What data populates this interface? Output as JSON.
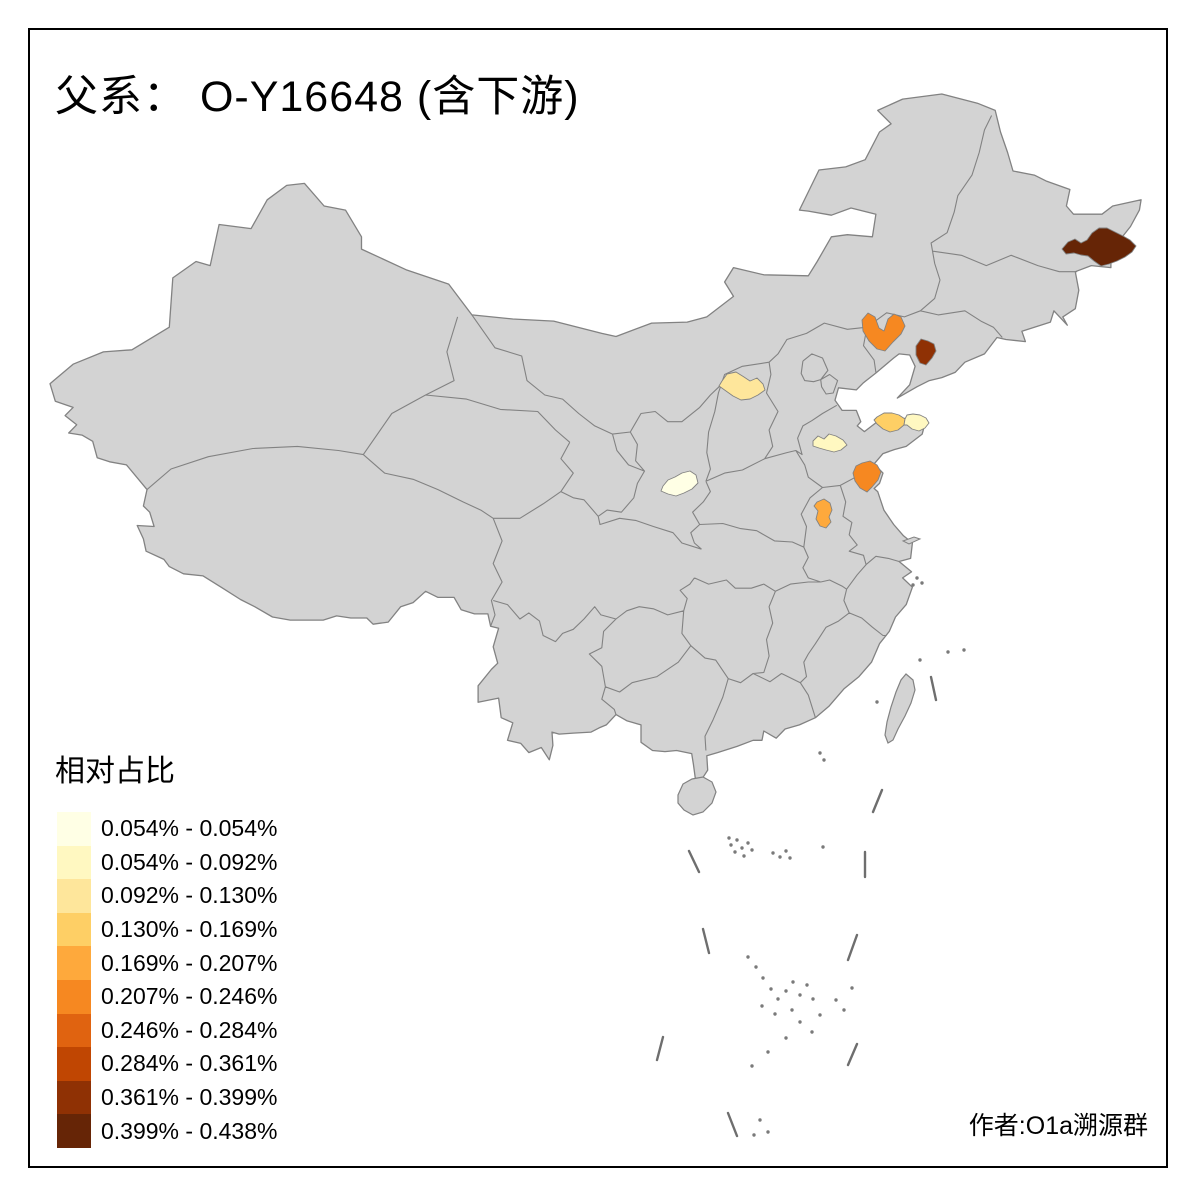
{
  "title": "父系： O-Y16648 (含下游)",
  "attribution": "作者:O1a溯源群",
  "legend": {
    "title": "相对占比",
    "classes": [
      {
        "label": "0.054% - 0.054%",
        "color": "#FFFFE5"
      },
      {
        "label": "0.054% - 0.092%",
        "color": "#FFF8C1"
      },
      {
        "label": "0.092% - 0.130%",
        "color": "#FEE69B"
      },
      {
        "label": "0.130% - 0.169%",
        "color": "#FECF65"
      },
      {
        "label": "0.169% - 0.207%",
        "color": "#FEA93C"
      },
      {
        "label": "0.207% - 0.246%",
        "color": "#F68821"
      },
      {
        "label": "0.246% - 0.284%",
        "color": "#E06310"
      },
      {
        "label": "0.284% - 0.361%",
        "color": "#C04602"
      },
      {
        "label": "0.361% - 0.399%",
        "color": "#8F3104"
      },
      {
        "label": "0.399% - 0.438%",
        "color": "#662506"
      }
    ]
  },
  "map": {
    "base_fill": "#D3D3D3",
    "border_color": "#828282",
    "island_dot_color": "#7A7A7A",
    "dash_line_color": "#6E6E6E",
    "background": "#FFFFFF",
    "frame_color": "#000000"
  },
  "chart_data": {
    "type": "choropleth",
    "title": "父系： O-Y16648 (含下游)",
    "legend_title": "相对占比",
    "unit": "relative frequency (%)",
    "classes": [
      "0.054% - 0.054%",
      "0.054% - 0.092%",
      "0.092% - 0.130%",
      "0.130% - 0.169%",
      "0.169% - 0.207%",
      "0.207% - 0.246%",
      "0.246% - 0.284%",
      "0.284% - 0.361%",
      "0.361% - 0.399%",
      "0.399% - 0.438%"
    ],
    "regions": [
      {
        "id": "east-heilongjiang",
        "class_index": 9,
        "range": "0.399% - 0.438%"
      },
      {
        "id": "central-liaoning",
        "class_index": 8,
        "range": "0.361% - 0.399%"
      },
      {
        "id": "west-liaoning",
        "class_index": 5,
        "range": "0.207% - 0.246%"
      },
      {
        "id": "coastal-north-jiangsu",
        "class_index": 5,
        "range": "0.207% - 0.246%"
      },
      {
        "id": "central-anhui",
        "class_index": 4,
        "range": "0.169% - 0.207%"
      },
      {
        "id": "central-shandong-peninsula",
        "class_index": 3,
        "range": "0.130% - 0.169%"
      },
      {
        "id": "north-shanxi",
        "class_index": 2,
        "range": "0.092% - 0.130%"
      },
      {
        "id": "east-shandong-peninsula",
        "class_index": 1,
        "range": "0.054% - 0.092%"
      },
      {
        "id": "west-shandong",
        "class_index": 1,
        "range": "0.054% - 0.092%"
      },
      {
        "id": "central-shaanxi",
        "class_index": 0,
        "range": "0.054% - 0.054%"
      }
    ]
  }
}
